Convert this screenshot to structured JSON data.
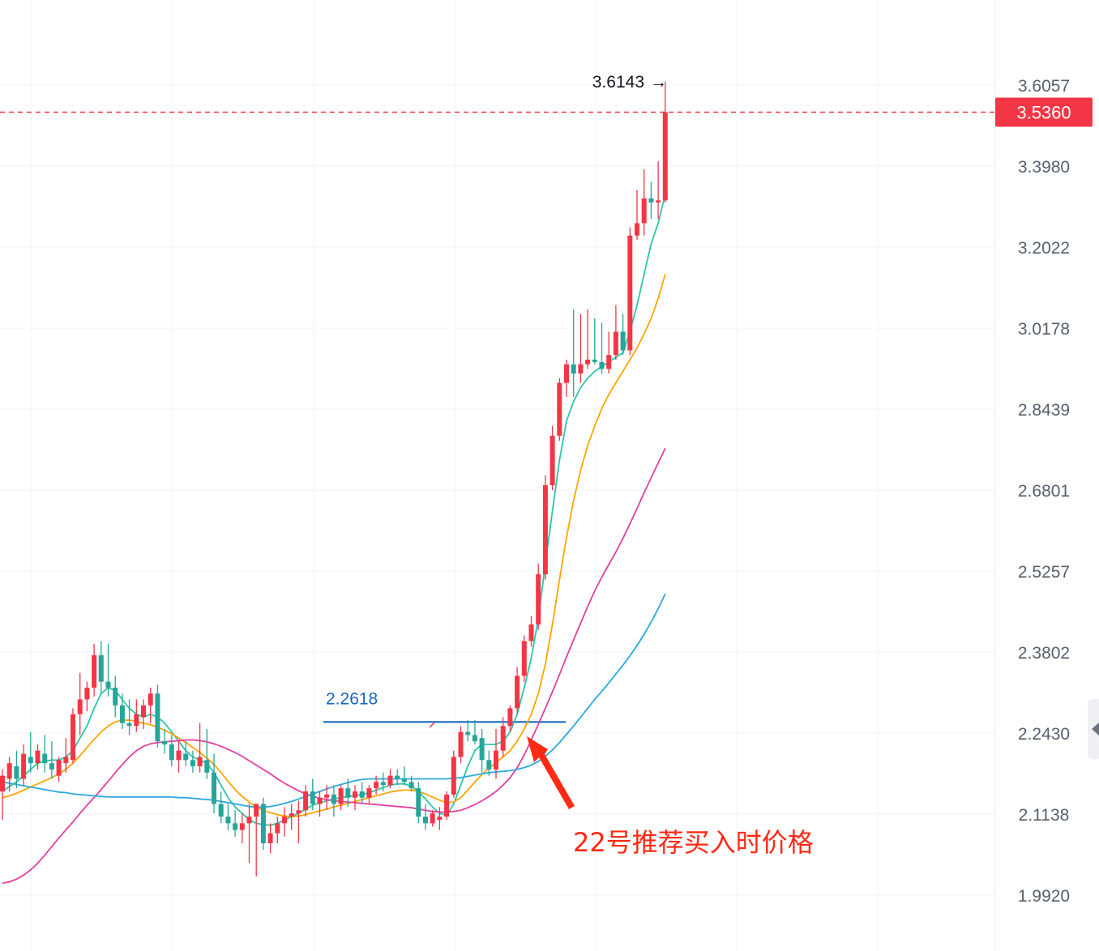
{
  "chart_data": {
    "type": "candlestick",
    "y_ticks": [
      "3.6057",
      "3.3980",
      "3.2022",
      "3.0178",
      "2.8439",
      "2.6801",
      "2.5257",
      "2.3802",
      "2.2430",
      "2.1138",
      "1.9920"
    ],
    "y_tick_values": [
      3.6057,
      3.398,
      3.2022,
      3.0178,
      2.8439,
      2.6801,
      2.5257,
      2.3802,
      2.243,
      2.1138,
      1.992
    ],
    "current_price": {
      "label": "3.5360",
      "value": 3.536,
      "color": "#f23645"
    },
    "high_marker": {
      "label": "3.6143",
      "value": 3.6143,
      "arrow": "→"
    },
    "level_line": {
      "label": "2.2618",
      "value": 2.2618,
      "color": "#1565c0"
    },
    "annotation": {
      "text": "22号推荐买入时价格",
      "color": "#ff2a14"
    },
    "colors": {
      "up": "#f23645",
      "down": "#26a69a",
      "ma_fast": "#2ec4a8",
      "ma_mid": "#ffa500",
      "ma_slow": "#e040a0",
      "ma_long": "#2aa9e0",
      "grid": "#f0f3fa"
    },
    "candles": [
      [
        2.15,
        2.185,
        2.105,
        2.175
      ],
      [
        2.17,
        2.205,
        2.15,
        2.195
      ],
      [
        2.19,
        2.215,
        2.155,
        2.17
      ],
      [
        2.17,
        2.225,
        2.16,
        2.21
      ],
      [
        2.205,
        2.245,
        2.18,
        2.195
      ],
      [
        2.195,
        2.225,
        2.185,
        2.215
      ],
      [
        2.21,
        2.24,
        2.18,
        2.195
      ],
      [
        2.195,
        2.23,
        2.17,
        2.185
      ],
      [
        2.175,
        2.205,
        2.165,
        2.2
      ],
      [
        2.195,
        2.235,
        2.18,
        2.205
      ],
      [
        2.2,
        2.285,
        2.195,
        2.275
      ],
      [
        2.275,
        2.345,
        2.24,
        2.3
      ],
      [
        2.3,
        2.33,
        2.28,
        2.32
      ],
      [
        2.32,
        2.395,
        2.305,
        2.375
      ],
      [
        2.375,
        2.4,
        2.31,
        2.33
      ],
      [
        2.33,
        2.395,
        2.305,
        2.32
      ],
      [
        2.32,
        2.34,
        2.27,
        2.29
      ],
      [
        2.29,
        2.31,
        2.25,
        2.26
      ],
      [
        2.26,
        2.3,
        2.24,
        2.255
      ],
      [
        2.255,
        2.3,
        2.245,
        2.275
      ],
      [
        2.27,
        2.3,
        2.25,
        2.29
      ],
      [
        2.29,
        2.32,
        2.26,
        2.31
      ],
      [
        2.31,
        2.325,
        2.22,
        2.23
      ],
      [
        2.23,
        2.25,
        2.21,
        2.225
      ],
      [
        2.225,
        2.24,
        2.19,
        2.2
      ],
      [
        2.2,
        2.23,
        2.18,
        2.215
      ],
      [
        2.21,
        2.23,
        2.19,
        2.2
      ],
      [
        2.2,
        2.215,
        2.18,
        2.19
      ],
      [
        2.19,
        2.26,
        2.18,
        2.205
      ],
      [
        2.2,
        2.25,
        2.17,
        2.18
      ],
      [
        2.18,
        2.21,
        2.115,
        2.13
      ],
      [
        2.13,
        2.15,
        2.1,
        2.11
      ],
      [
        2.11,
        2.13,
        2.09,
        2.1
      ],
      [
        2.1,
        2.12,
        2.08,
        2.09
      ],
      [
        2.09,
        2.115,
        2.07,
        2.1
      ],
      [
        2.1,
        2.13,
        2.04,
        2.11
      ],
      [
        2.11,
        2.13,
        2.02,
        2.13
      ],
      [
        2.13,
        2.14,
        2.06,
        2.07
      ],
      [
        2.07,
        2.1,
        2.055,
        2.085
      ],
      [
        2.085,
        2.11,
        2.07,
        2.1
      ],
      [
        2.1,
        2.125,
        2.08,
        2.11
      ],
      [
        2.11,
        2.13,
        2.09,
        2.115
      ],
      [
        2.115,
        2.135,
        2.07,
        2.12
      ],
      [
        2.12,
        2.16,
        2.11,
        2.15
      ],
      [
        2.15,
        2.17,
        2.12,
        2.13
      ],
      [
        2.13,
        2.15,
        2.11,
        2.14
      ],
      [
        2.14,
        2.16,
        2.12,
        2.145
      ],
      [
        2.145,
        2.16,
        2.11,
        2.13
      ],
      [
        2.13,
        2.16,
        2.12,
        2.155
      ],
      [
        2.155,
        2.17,
        2.125,
        2.14
      ],
      [
        2.14,
        2.16,
        2.12,
        2.15
      ],
      [
        2.15,
        2.165,
        2.13,
        2.14
      ],
      [
        2.14,
        2.16,
        2.13,
        2.155
      ],
      [
        2.155,
        2.175,
        2.145,
        2.165
      ],
      [
        2.165,
        2.18,
        2.15,
        2.16
      ],
      [
        2.16,
        2.185,
        2.155,
        2.175
      ],
      [
        2.175,
        2.185,
        2.16,
        2.17
      ],
      [
        2.17,
        2.19,
        2.16,
        2.165
      ],
      [
        2.165,
        2.175,
        2.15,
        2.155
      ],
      [
        2.155,
        2.165,
        2.1,
        2.11
      ],
      [
        2.11,
        2.13,
        2.09,
        2.1
      ],
      [
        2.1,
        2.12,
        2.095,
        2.115
      ],
      [
        2.105,
        2.125,
        2.09,
        2.11
      ],
      [
        2.11,
        2.15,
        2.105,
        2.145
      ],
      [
        2.145,
        2.215,
        2.14,
        2.205
      ],
      [
        2.205,
        2.255,
        2.195,
        2.245
      ],
      [
        2.245,
        2.265,
        2.23,
        2.24
      ],
      [
        2.24,
        2.265,
        2.225,
        2.23
      ],
      [
        2.235,
        2.25,
        2.18,
        2.2
      ],
      [
        2.2,
        2.215,
        2.175,
        2.185
      ],
      [
        2.185,
        2.25,
        2.17,
        2.215
      ],
      [
        2.215,
        2.27,
        2.205,
        2.255
      ],
      [
        2.255,
        2.29,
        2.245,
        2.285
      ],
      [
        2.285,
        2.355,
        2.275,
        2.34
      ],
      [
        2.34,
        2.41,
        2.33,
        2.4
      ],
      [
        2.4,
        2.445,
        2.39,
        2.43
      ],
      [
        2.43,
        2.54,
        2.42,
        2.52
      ],
      [
        2.52,
        2.71,
        2.51,
        2.69
      ],
      [
        2.69,
        2.81,
        2.68,
        2.79
      ],
      [
        2.79,
        2.91,
        2.78,
        2.9
      ],
      [
        2.9,
        2.95,
        2.87,
        2.94
      ],
      [
        2.94,
        3.06,
        2.87,
        2.92
      ],
      [
        2.92,
        3.05,
        2.9,
        2.94
      ],
      [
        2.94,
        3.06,
        2.93,
        2.95
      ],
      [
        2.95,
        3.04,
        2.94,
        2.945
      ],
      [
        2.945,
        3.03,
        2.92,
        2.93
      ],
      [
        2.93,
        3.01,
        2.92,
        2.96
      ],
      [
        2.96,
        3.07,
        2.95,
        3.01
      ],
      [
        3.01,
        3.05,
        2.96,
        2.97
      ],
      [
        2.97,
        3.25,
        2.96,
        3.23
      ],
      [
        3.23,
        3.34,
        3.22,
        3.26
      ],
      [
        3.26,
        3.39,
        3.23,
        3.32
      ],
      [
        3.32,
        3.36,
        3.27,
        3.31
      ],
      [
        3.31,
        3.41,
        3.27,
        3.315
      ],
      [
        3.315,
        3.614,
        3.31,
        3.536
      ]
    ],
    "ma_fast": [
      2.15,
      2.158,
      2.165,
      2.175,
      2.185,
      2.195,
      2.198,
      2.2,
      2.2,
      2.205,
      2.215,
      2.235,
      2.255,
      2.285,
      2.31,
      2.32,
      2.315,
      2.3,
      2.285,
      2.275,
      2.27,
      2.275,
      2.27,
      2.26,
      2.245,
      2.23,
      2.215,
      2.205,
      2.2,
      2.195,
      2.18,
      2.16,
      2.14,
      2.125,
      2.115,
      2.105,
      2.1,
      2.098,
      2.097,
      2.1,
      2.105,
      2.11,
      2.115,
      2.122,
      2.128,
      2.132,
      2.135,
      2.138,
      2.14,
      2.142,
      2.143,
      2.145,
      2.148,
      2.152,
      2.156,
      2.16,
      2.162,
      2.162,
      2.158,
      2.15,
      2.138,
      2.125,
      2.115,
      2.112,
      2.13,
      2.16,
      2.19,
      2.215,
      2.225,
      2.225,
      2.225,
      2.23,
      2.245,
      2.275,
      2.32,
      2.37,
      2.44,
      2.54,
      2.64,
      2.74,
      2.82,
      2.86,
      2.89,
      2.91,
      2.925,
      2.935,
      2.945,
      2.955,
      2.965,
      3.01,
      3.07,
      3.14,
      3.21,
      3.26,
      3.33
    ],
    "ma_mid": [
      2.14,
      2.143,
      2.147,
      2.152,
      2.157,
      2.162,
      2.167,
      2.172,
      2.178,
      2.185,
      2.195,
      2.207,
      2.22,
      2.233,
      2.245,
      2.255,
      2.262,
      2.265,
      2.265,
      2.263,
      2.26,
      2.257,
      2.253,
      2.248,
      2.242,
      2.235,
      2.228,
      2.22,
      2.212,
      2.203,
      2.193,
      2.18,
      2.166,
      2.153,
      2.142,
      2.133,
      2.125,
      2.12,
      2.116,
      2.113,
      2.111,
      2.11,
      2.111,
      2.113,
      2.116,
      2.119,
      2.122,
      2.125,
      2.128,
      2.131,
      2.134,
      2.137,
      2.14,
      2.143,
      2.146,
      2.149,
      2.151,
      2.152,
      2.152,
      2.15,
      2.146,
      2.141,
      2.136,
      2.132,
      2.133,
      2.14,
      2.152,
      2.165,
      2.177,
      2.187,
      2.196,
      2.205,
      2.215,
      2.23,
      2.25,
      2.275,
      2.31,
      2.36,
      2.43,
      2.51,
      2.59,
      2.66,
      2.72,
      2.77,
      2.81,
      2.845,
      2.875,
      2.9,
      2.925,
      2.95,
      2.975,
      3.005,
      3.04,
      3.085,
      3.14
    ],
    "ma_slow": [
      2.01,
      2.012,
      2.016,
      2.022,
      2.03,
      2.04,
      2.052,
      2.065,
      2.078,
      2.09,
      2.102,
      2.115,
      2.128,
      2.14,
      2.153,
      2.166,
      2.18,
      2.193,
      2.205,
      2.215,
      2.222,
      2.226,
      2.228,
      2.229,
      2.23,
      2.231,
      2.232,
      2.232,
      2.231,
      2.229,
      2.226,
      2.222,
      2.217,
      2.212,
      2.206,
      2.199,
      2.192,
      2.185,
      2.178,
      2.17,
      2.163,
      2.157,
      2.151,
      2.146,
      2.142,
      2.139,
      2.137,
      2.135,
      2.134,
      2.133,
      2.132,
      2.131,
      2.13,
      2.129,
      2.128,
      2.127,
      2.126,
      2.125,
      2.124,
      2.122,
      2.12,
      2.118,
      2.117,
      2.117,
      2.118,
      2.12,
      2.124,
      2.129,
      2.135,
      2.142,
      2.15,
      2.16,
      2.172,
      2.188,
      2.208,
      2.232,
      2.258,
      2.285,
      2.313,
      2.342,
      2.372,
      2.402,
      2.432,
      2.462,
      2.49,
      2.515,
      2.538,
      2.562,
      2.588,
      2.616,
      2.645,
      2.675,
      2.705,
      2.735,
      2.765
    ],
    "ma_long": [
      2.165,
      2.163,
      2.161,
      2.159,
      2.157,
      2.155,
      2.153,
      2.151,
      2.149,
      2.148,
      2.146,
      2.145,
      2.144,
      2.143,
      2.142,
      2.141,
      2.141,
      2.141,
      2.141,
      2.141,
      2.141,
      2.141,
      2.141,
      2.141,
      2.141,
      2.14,
      2.14,
      2.139,
      2.138,
      2.137,
      2.136,
      2.134,
      2.132,
      2.13,
      2.128,
      2.126,
      2.125,
      2.125,
      2.126,
      2.128,
      2.131,
      2.134,
      2.138,
      2.142,
      2.146,
      2.15,
      2.154,
      2.158,
      2.161,
      2.164,
      2.167,
      2.169,
      2.17,
      2.17,
      2.17,
      2.17,
      2.17,
      2.17,
      2.17,
      2.17,
      2.17,
      2.17,
      2.17,
      2.17,
      2.171,
      2.172,
      2.174,
      2.176,
      2.178,
      2.18,
      2.181,
      2.182,
      2.183,
      2.185,
      2.188,
      2.192,
      2.198,
      2.206,
      2.216,
      2.228,
      2.241,
      2.255,
      2.27,
      2.285,
      2.3,
      2.314,
      2.328,
      2.343,
      2.358,
      2.374,
      2.392,
      2.412,
      2.434,
      2.458,
      2.485
    ]
  }
}
